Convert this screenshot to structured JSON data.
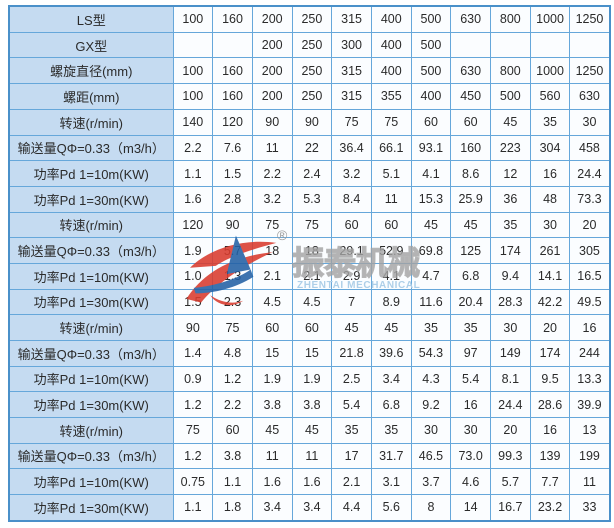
{
  "table": {
    "rows": [
      {
        "label": "LS型",
        "values": [
          "100",
          "160",
          "200",
          "250",
          "315",
          "400",
          "500",
          "630",
          "800",
          "1000",
          "1250"
        ]
      },
      {
        "label": "GX型",
        "values": [
          "",
          "",
          "200",
          "250",
          "300",
          "400",
          "500",
          "",
          "",
          "",
          ""
        ]
      },
      {
        "label": "螺旋直径(mm)",
        "values": [
          "100",
          "160",
          "200",
          "250",
          "315",
          "400",
          "500",
          "630",
          "800",
          "1000",
          "1250"
        ]
      },
      {
        "label": "螺距(mm)",
        "values": [
          "100",
          "160",
          "200",
          "250",
          "315",
          "355",
          "400",
          "450",
          "500",
          "560",
          "630"
        ]
      },
      {
        "label": "转速(r/min)",
        "values": [
          "140",
          "120",
          "90",
          "90",
          "75",
          "75",
          "60",
          "60",
          "45",
          "35",
          "30"
        ]
      },
      {
        "label": "输送量QΦ=0.33（m3/h）",
        "values": [
          "2.2",
          "7.6",
          "11",
          "22",
          "36.4",
          "66.1",
          "93.1",
          "160",
          "223",
          "304",
          "458"
        ]
      },
      {
        "label": "功率Pd 1=10m(KW)",
        "values": [
          "1.1",
          "1.5",
          "2.2",
          "2.4",
          "3.2",
          "5.1",
          "4.1",
          "8.6",
          "12",
          "16",
          "24.4"
        ]
      },
      {
        "label": "功率Pd 1=30m(KW)",
        "values": [
          "1.6",
          "2.8",
          "3.2",
          "5.3",
          "8.4",
          "11",
          "15.3",
          "25.9",
          "36",
          "48",
          "73.3"
        ]
      },
      {
        "label": "转速(r/min)",
        "values": [
          "120",
          "90",
          "75",
          "75",
          "60",
          "60",
          "45",
          "45",
          "35",
          "30",
          "20"
        ]
      },
      {
        "label": "输送量QΦ=0.33（m3/h）",
        "values": [
          "1.9",
          "5.7",
          "18",
          "18",
          "29.1",
          "52.9",
          "69.8",
          "125",
          "174",
          "261",
          "305"
        ]
      },
      {
        "label": "功率Pd 1=10m(KW)",
        "values": [
          "1.0",
          "1.3",
          "2.1",
          "2.1",
          "2.9",
          "4.1",
          "4.7",
          "6.8",
          "9.4",
          "14.1",
          "16.5"
        ]
      },
      {
        "label": "功率Pd 1=30m(KW)",
        "values": [
          "1.5",
          "2.3",
          "4.5",
          "4.5",
          "7",
          "8.9",
          "11.6",
          "20.4",
          "28.3",
          "42.2",
          "49.5"
        ]
      },
      {
        "label": "转速(r/min)",
        "values": [
          "90",
          "75",
          "60",
          "60",
          "45",
          "45",
          "35",
          "35",
          "30",
          "20",
          "16"
        ]
      },
      {
        "label": "输送量QΦ=0.33（m3/h）",
        "values": [
          "1.4",
          "4.8",
          "15",
          "15",
          "21.8",
          "39.6",
          "54.3",
          "97",
          "149",
          "174",
          "244"
        ]
      },
      {
        "label": "功率Pd 1=10m(KW)",
        "values": [
          "0.9",
          "1.2",
          "1.9",
          "1.9",
          "2.5",
          "3.4",
          "4.3",
          "5.4",
          "8.1",
          "9.5",
          "13.3"
        ]
      },
      {
        "label": "功率Pd 1=30m(KW)",
        "values": [
          "1.2",
          "2.2",
          "3.8",
          "3.8",
          "5.4",
          "6.8",
          "9.2",
          "16",
          "24.4",
          "28.6",
          "39.9"
        ]
      },
      {
        "label": "转速(r/min)",
        "values": [
          "75",
          "60",
          "45",
          "45",
          "35",
          "35",
          "30",
          "30",
          "20",
          "16",
          "13"
        ]
      },
      {
        "label": "输送量QΦ=0.33（m3/h）",
        "values": [
          "1.2",
          "3.8",
          "11",
          "11",
          "17",
          "31.7",
          "46.5",
          "73.0",
          "99.3",
          "139",
          "199"
        ]
      },
      {
        "label": "功率Pd 1=10m(KW)",
        "values": [
          "0.75",
          "1.1",
          "1.6",
          "1.6",
          "2.1",
          "3.1",
          "3.7",
          "4.6",
          "5.7",
          "7.7",
          "11"
        ]
      },
      {
        "label": "功率Pd 1=30m(KW)",
        "values": [
          "1.1",
          "1.8",
          "3.4",
          "3.4",
          "4.4",
          "5.6",
          "8",
          "14",
          "16.7",
          "23.2",
          "33"
        ]
      }
    ]
  },
  "watermark": {
    "registered_mark": "®",
    "brand_cn": "振泰机械",
    "brand_en": "ZHENTAI MECHANICAL"
  },
  "colors": {
    "table_outer_border": "#4a90c9",
    "table_grid": "#66a7da",
    "header_cell_bg": "#c5dbf1",
    "data_cell_bg": "#fbfdff",
    "logo_red": "#d93b2e",
    "logo_blue": "#2360a5",
    "watermark_cn_stroke": "#a0a0a0",
    "watermark_en_text": "#aecfe8"
  }
}
